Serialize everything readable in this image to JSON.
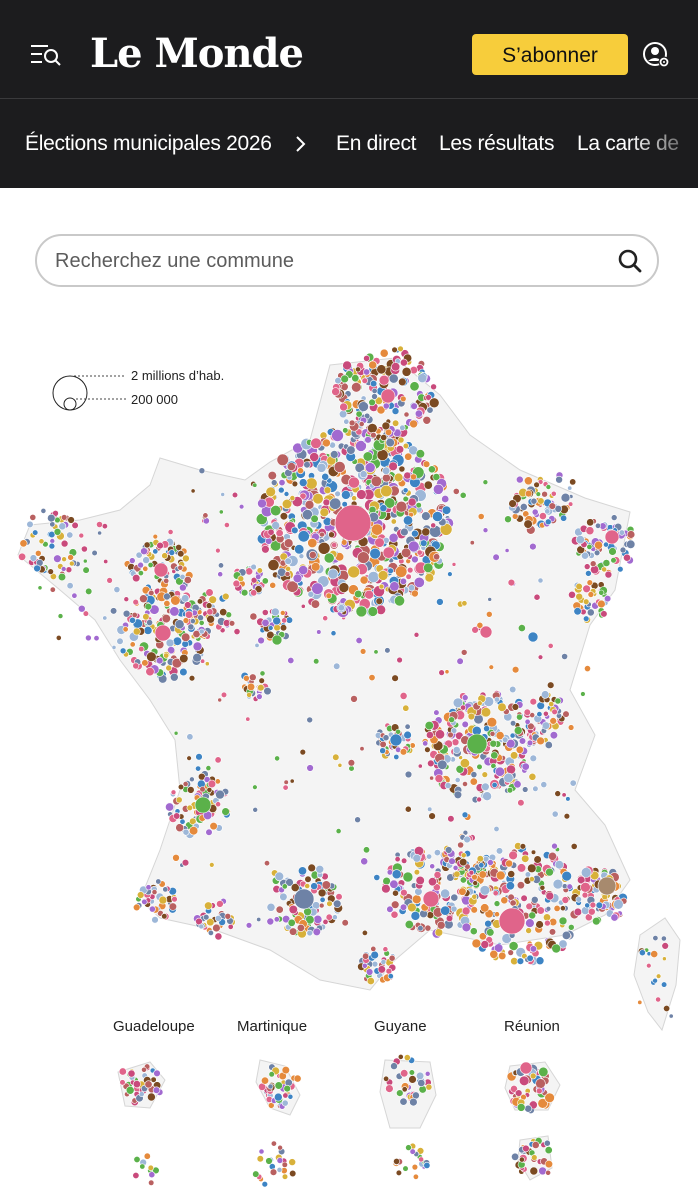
{
  "header": {
    "logo": "Le Monde",
    "subscribe_label": "S’abonner",
    "menu_icon": "menu-search-icon",
    "account_icon": "account-settings-icon"
  },
  "nav": {
    "section": "Élections municipales 2026",
    "items": [
      "En direct",
      "Les résultats",
      "La carte de"
    ]
  },
  "search": {
    "placeholder": "Recherchez une commune"
  },
  "legend": {
    "large": "2 millions d’hab.",
    "small": "200 000"
  },
  "overseas": [
    "Guadeloupe",
    "Martinique",
    "Guyane",
    "Réunion"
  ],
  "colors": {
    "header_bg": "#1c1c1e",
    "accent": "#f7cd3b",
    "party_palette": [
      "#e0648a",
      "#3d84c4",
      "#6e82a6",
      "#d8b13a",
      "#c94a7c",
      "#5bb14a",
      "#7b4a22",
      "#a26ad0",
      "#e58a3c",
      "#9db7d8",
      "#b96060"
    ]
  }
}
